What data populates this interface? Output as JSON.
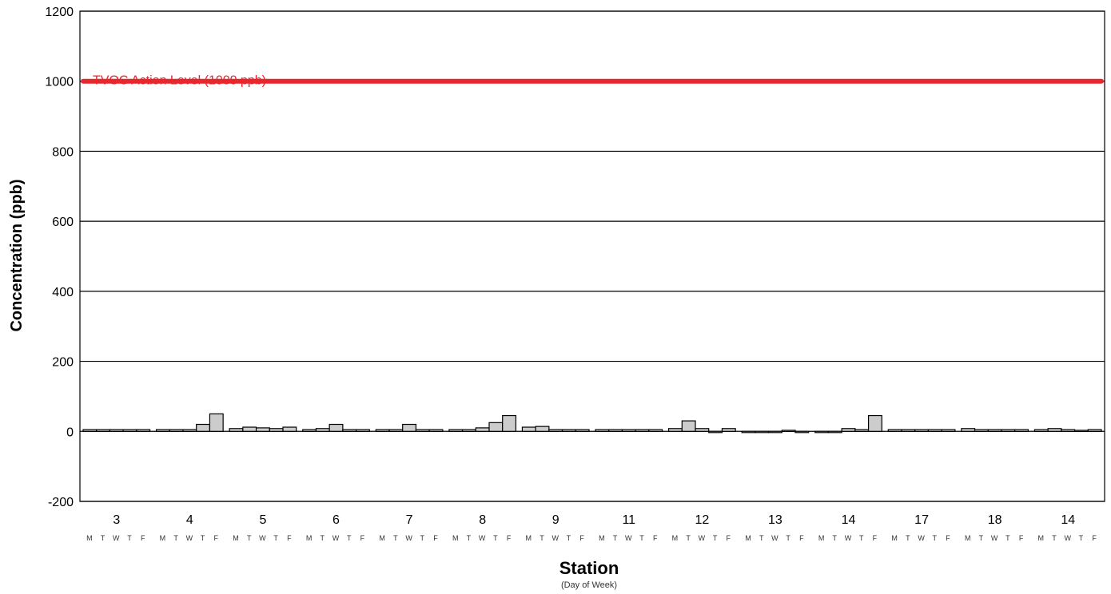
{
  "chart_data": {
    "type": "bar",
    "xlabel": "Station",
    "xlabel_sub": "(Day of Week)",
    "ylabel": "Concentration (ppb)",
    "ylim": [
      -200,
      1200
    ],
    "yticks": [
      "1200",
      "1000",
      "800",
      "600",
      "400",
      "200",
      "0",
      "-200"
    ],
    "ytick_values": [
      1200,
      1000,
      800,
      600,
      400,
      200,
      0,
      -200
    ],
    "grid": true,
    "bar_color": "#cccccc",
    "reference_line": {
      "label": "TVOC Action Level (1000 ppb)",
      "value": 1000,
      "color": "#e8262d"
    },
    "day_labels": [
      "M",
      "T",
      "W",
      "T",
      "F"
    ],
    "groups": [
      {
        "station": "3",
        "values": [
          5,
          5,
          5,
          5,
          5
        ]
      },
      {
        "station": "4",
        "values": [
          5,
          5,
          5,
          20,
          50
        ]
      },
      {
        "station": "5",
        "values": [
          8,
          12,
          10,
          8,
          12
        ]
      },
      {
        "station": "6",
        "values": [
          5,
          8,
          20,
          5,
          5
        ]
      },
      {
        "station": "7",
        "values": [
          5,
          5,
          20,
          5,
          5
        ]
      },
      {
        "station": "8",
        "values": [
          5,
          5,
          10,
          25,
          45
        ]
      },
      {
        "station": "9",
        "values": [
          12,
          14,
          5,
          5,
          5
        ]
      },
      {
        "station": "11",
        "values": [
          5,
          5,
          5,
          5,
          5
        ]
      },
      {
        "station": "12",
        "values": [
          8,
          30,
          8,
          -3,
          8
        ]
      },
      {
        "station": "13",
        "values": [
          0,
          0,
          0,
          3,
          0
        ]
      },
      {
        "station": "14",
        "values": [
          0,
          0,
          8,
          5,
          45
        ]
      },
      {
        "station": "17",
        "values": [
          5,
          5,
          5,
          5,
          5
        ]
      },
      {
        "station": "18",
        "values": [
          8,
          5,
          5,
          5,
          5
        ]
      },
      {
        "station": "14",
        "values": [
          5,
          8,
          5,
          3,
          5
        ]
      }
    ]
  }
}
